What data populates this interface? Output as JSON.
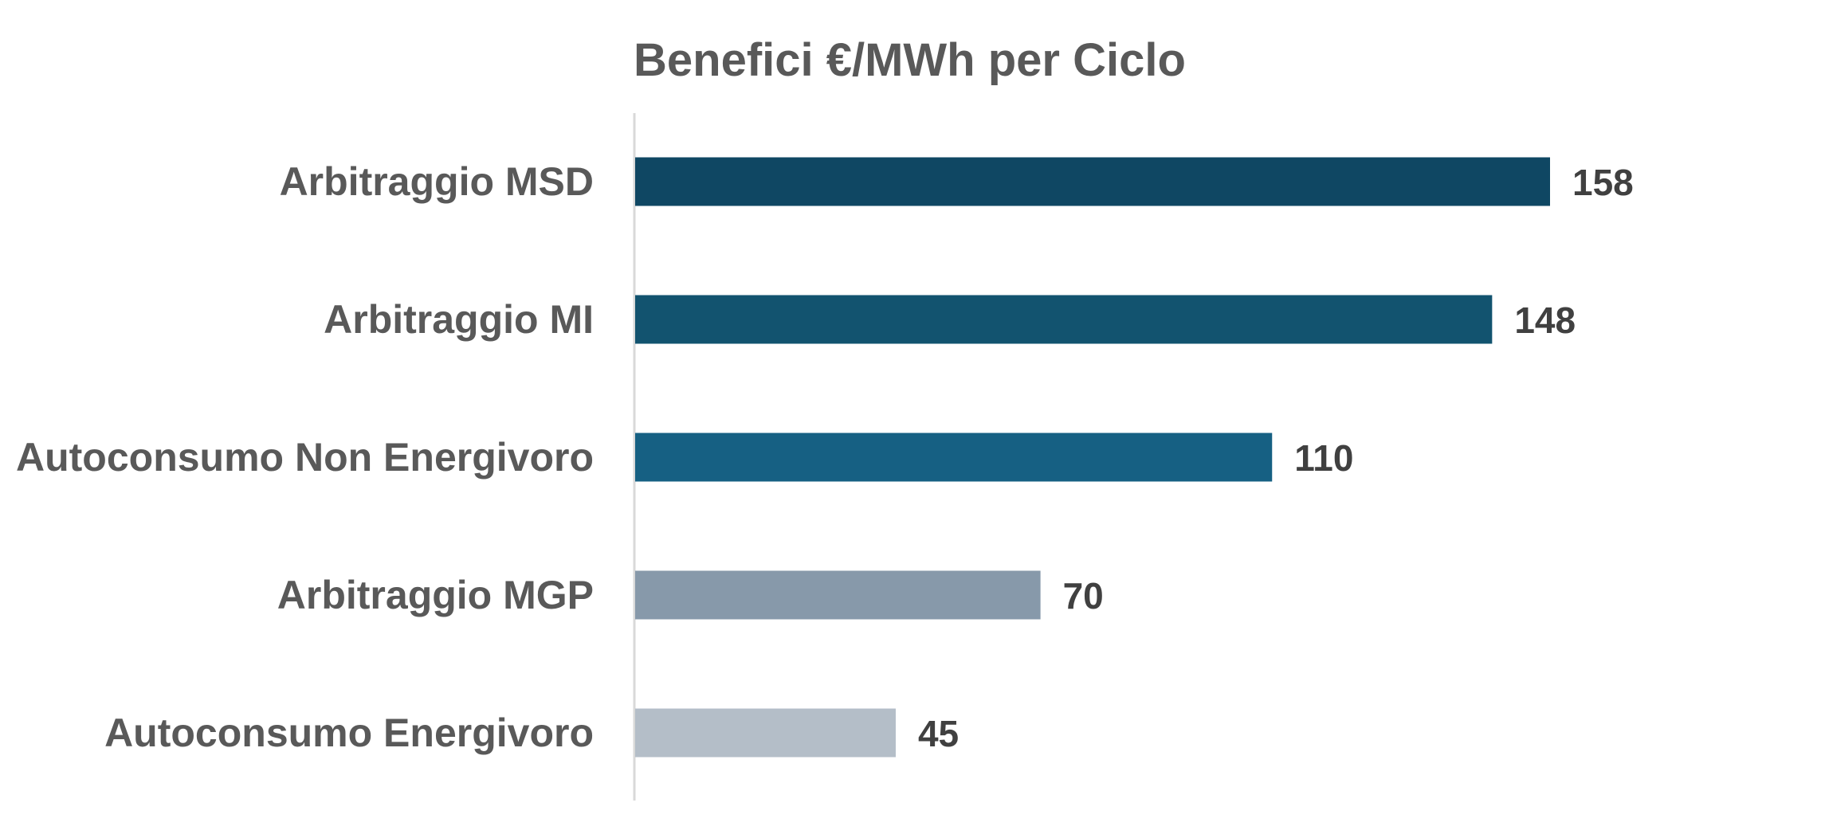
{
  "chart_data": {
    "type": "bar",
    "orientation": "horizontal",
    "title": "Benefici €/MWh per Ciclo",
    "xlabel": "",
    "ylabel": "",
    "categories": [
      "Arbitraggio MSD",
      "Arbitraggio MI",
      "Autoconsumo Non Energivoro",
      "Arbitraggio MGP",
      "Autoconsumo Energivoro"
    ],
    "values": [
      158,
      148,
      110,
      70,
      45
    ],
    "colors": [
      "#0f4763",
      "#12536f",
      "#166083",
      "#8799aa",
      "#b4bec8"
    ],
    "xlim": [
      0,
      160
    ],
    "grid": false,
    "legend": "none",
    "data_labels": true
  }
}
